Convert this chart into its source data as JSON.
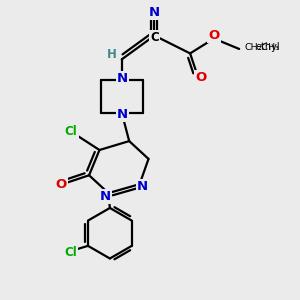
{
  "bg_color": "#ebebeb",
  "bond_color": "#000000",
  "bond_width": 1.6,
  "colors": {
    "N": "#0000cc",
    "O": "#dd0000",
    "Cl": "#00aa00",
    "H": "#448888",
    "C": "#000000"
  }
}
